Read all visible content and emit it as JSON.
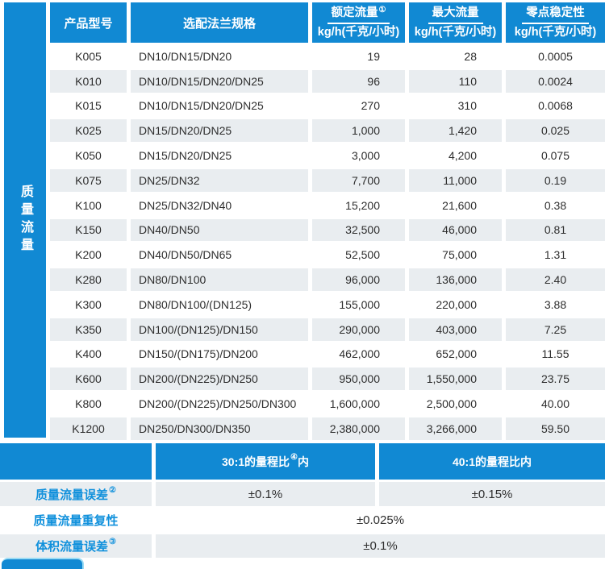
{
  "colors": {
    "accent_blue": "#1189d3",
    "row_alt_gray": "#e9edf0",
    "label_blue": "#1191dc",
    "body_text": "#2e2e2e"
  },
  "sidebar": {
    "label": "质量流量"
  },
  "table": {
    "headers": {
      "model": "产品型号",
      "flange": "选配法兰规格",
      "rated": {
        "title": "额定流量",
        "sup": "①",
        "unit": "kg/h(千克/小时)"
      },
      "max": {
        "title": "最大流量",
        "sup": "",
        "unit": "kg/h(千克/小时)"
      },
      "zero": {
        "title": "零点稳定性",
        "sup": "",
        "unit": "kg/h(千克/小时)"
      }
    },
    "rows": [
      [
        "K005",
        "DN10/DN15/DN20",
        "19",
        "28",
        "0.0005"
      ],
      [
        "K010",
        "DN10/DN15/DN20/DN25",
        "96",
        "110",
        "0.0024"
      ],
      [
        "K015",
        "DN10/DN15/DN20/DN25",
        "270",
        "310",
        "0.0068"
      ],
      [
        "K025",
        "DN15/DN20/DN25",
        "1,000",
        "1,420",
        "0.025"
      ],
      [
        "K050",
        "DN15/DN20/DN25",
        "3,000",
        "4,200",
        "0.075"
      ],
      [
        "K075",
        "DN25/DN32",
        "7,700",
        "11,000",
        "0.19"
      ],
      [
        "K100",
        "DN25/DN32/DN40",
        "15,200",
        "21,600",
        "0.38"
      ],
      [
        "K150",
        "DN40/DN50",
        "32,500",
        "46,000",
        "0.81"
      ],
      [
        "K200",
        "DN40/DN50/DN65",
        "52,500",
        "75,000",
        "1.31"
      ],
      [
        "K280",
        "DN80/DN100",
        "96,000",
        "136,000",
        "2.40"
      ],
      [
        "K300",
        "DN80/DN100/(DN125)",
        "155,000",
        "220,000",
        "3.88"
      ],
      [
        "K350",
        "DN100/(DN125)/DN150",
        "290,000",
        "403,000",
        "7.25"
      ],
      [
        "K400",
        "DN150/(DN175)/DN200",
        "462,000",
        "652,000",
        "11.55"
      ],
      [
        "K600",
        "DN200/(DN225)/DN250",
        "950,000",
        "1,550,000",
        "23.75"
      ],
      [
        "K800",
        "DN200/(DN225)/DN250/DN300",
        "1,600,000",
        "2,500,000",
        "40.00"
      ],
      [
        "K1200",
        "DN250/DN300/DN350",
        "2,380,000",
        "3,266,000",
        "59.50"
      ]
    ]
  },
  "accuracy": {
    "turndown_30": {
      "before": "30:1的量程比",
      "sup": "④",
      "after": "内"
    },
    "turndown_40": {
      "before": "40:1的量程比内",
      "sup": "",
      "after": ""
    },
    "mass_flow_error": {
      "label": "质量流量误差",
      "sup": "②",
      "value_30": "±0.1%",
      "value_40": "±0.15%"
    },
    "mass_flow_repeatability": {
      "label": "质量流量重复性",
      "sup": "",
      "value": "±0.025%"
    },
    "volume_flow_error": {
      "label": "体积流量误差",
      "sup": "③",
      "value": "±0.1%"
    }
  }
}
